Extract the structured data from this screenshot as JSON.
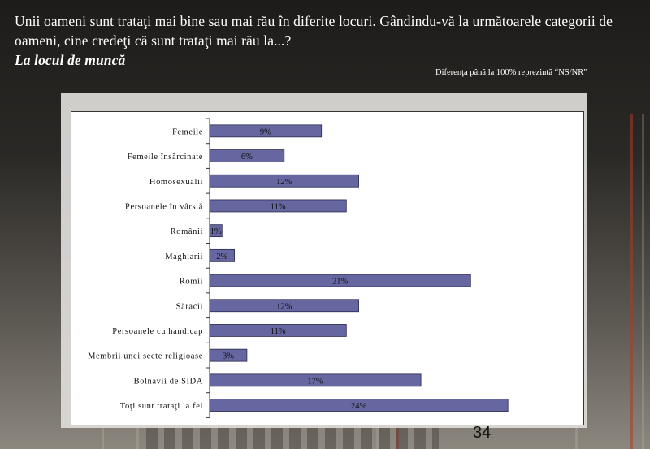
{
  "title": {
    "question": "Unii oameni sunt trataţi mai bine sau mai rău în diferite locuri. Gândindu-vă la următoarele categorii de oameni, cine credeţi că sunt trataţi mai rău la...?",
    "subtitle": "La locul de muncă"
  },
  "note": "Diferenţa până la 100% reprezintă  “NS/NR”",
  "page_number": "34",
  "colors": {
    "bar_fill": "#6666a0",
    "bar_stroke": "#2a2a50"
  },
  "chart_data": {
    "type": "bar",
    "orientation": "horizontal",
    "categories": [
      "Femeile",
      "Femeile  însărcinate",
      "Homosexualii",
      "Persoanele în vârstă",
      "Românii",
      "Maghiarii",
      "Romii",
      "Săracii",
      "Persoanele cu handicap",
      "Membrii unei secte religioase",
      "Bolnavii de SIDA",
      "Toţi sunt trataţi la fel"
    ],
    "values": [
      9,
      6,
      12,
      11,
      1,
      2,
      21,
      12,
      11,
      3,
      17,
      24
    ],
    "value_labels": [
      "9%",
      "6%",
      "12%",
      "11%",
      "1%",
      "2%",
      "21%",
      "12%",
      "11%",
      "3%",
      "17%",
      "24%"
    ],
    "xlim": [
      0,
      30
    ],
    "grid": false
  }
}
